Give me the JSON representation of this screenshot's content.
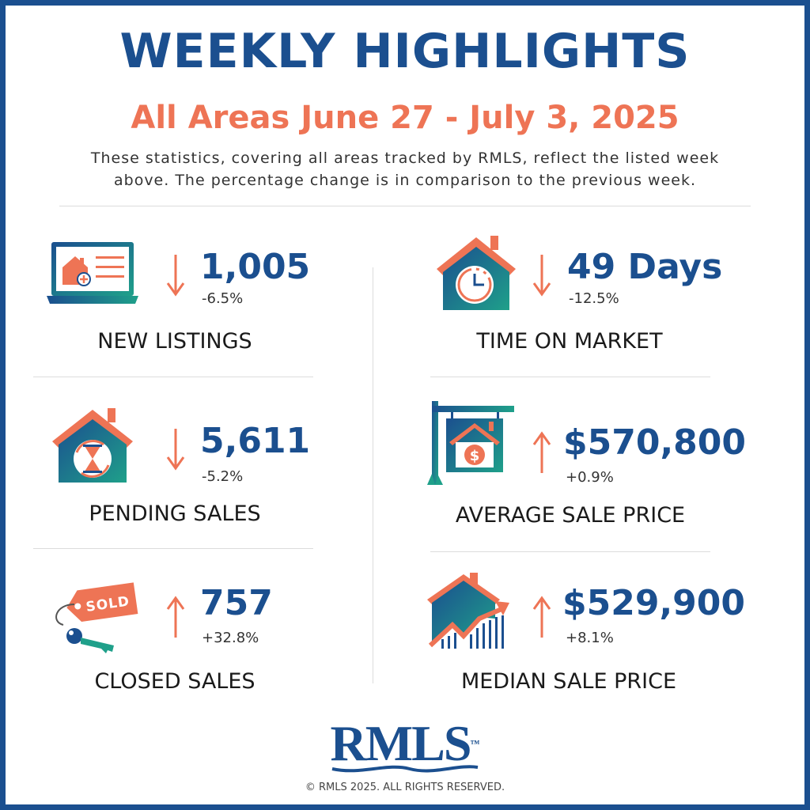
{
  "header": {
    "title": "WEEKLY HIGHLIGHTS",
    "subtitle": "All Areas June 27 - July 3, 2025",
    "description_line1": "These statistics, covering all areas tracked by RMLS, reflect the listed week",
    "description_line2": "above. The percentage change is in comparison to the previous week."
  },
  "stats": {
    "new_listings": {
      "value": "1,005",
      "change": "-6.5%",
      "label": "NEW LISTINGS",
      "direction": "down",
      "icon": "laptop-house-icon"
    },
    "time_on_market": {
      "value": "49 Days",
      "change": "-12.5%",
      "label": "TIME ON MARKET",
      "direction": "down",
      "icon": "house-clock-icon"
    },
    "pending_sales": {
      "value": "5,611",
      "change": "-5.2%",
      "label": "PENDING SALES",
      "direction": "down",
      "icon": "house-hourglass-icon"
    },
    "average_sale_price": {
      "value": "$570,800",
      "change": "+0.9%",
      "label": "AVERAGE SALE PRICE",
      "direction": "up",
      "icon": "sale-sign-dollar-icon"
    },
    "closed_sales": {
      "value": "757",
      "change": "+32.8%",
      "label": "CLOSED SALES",
      "direction": "up",
      "icon": "sold-tag-key-icon",
      "tag_text": "SOLD"
    },
    "median_sale_price": {
      "value": "$529,900",
      "change": "+8.1%",
      "label": "MEDIAN SALE PRICE",
      "direction": "up",
      "icon": "house-chart-icon"
    }
  },
  "footer": {
    "logo": "RMLS",
    "trademark": "™",
    "copyright": "© RMLS 2025. ALL RIGHTS RESERVED."
  },
  "colors": {
    "navy": "#1B4F8F",
    "coral": "#EE7455",
    "teal": "#1FA08A"
  }
}
